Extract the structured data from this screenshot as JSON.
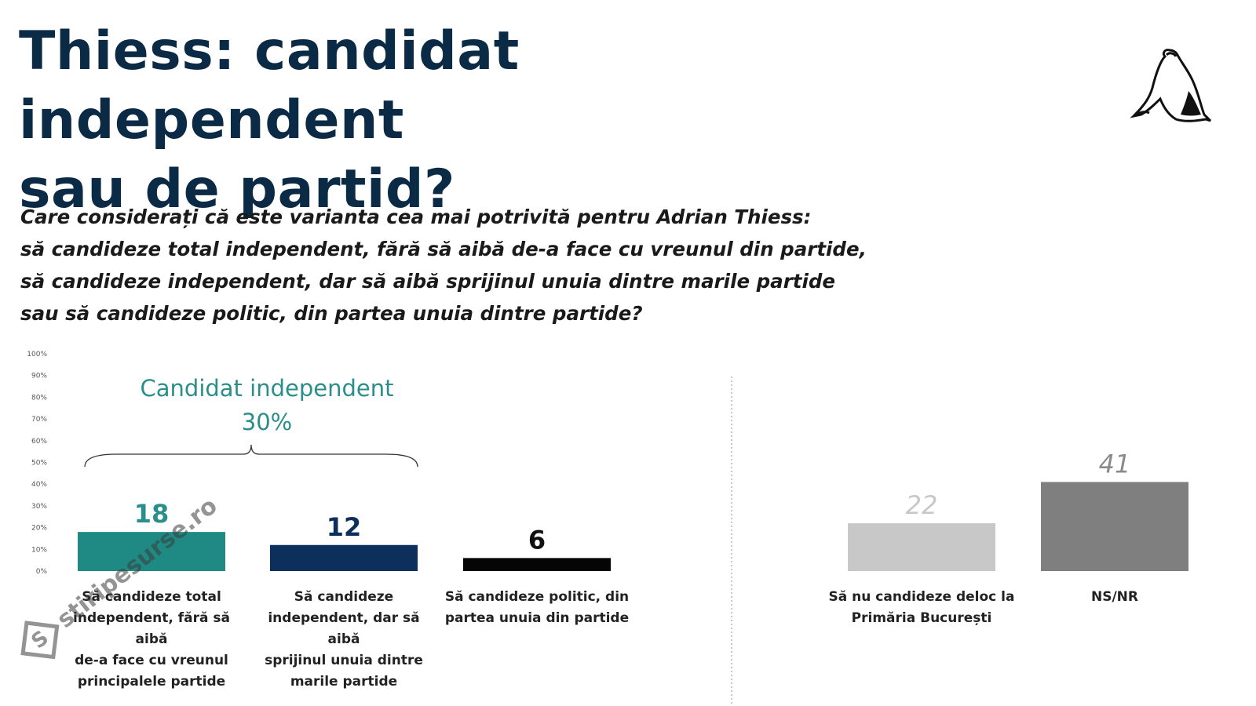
{
  "title": {
    "line1": "Thiess: candidat independent",
    "line2": "sau de partid?"
  },
  "question": {
    "lines": [
      "Care considerați că este varianta cea mai potrivită pentru Adrian Thiess:",
      "să candideze total independent, fără să aibă de-a face cu vreunul din partide,",
      "să candideze independent, dar să aibă sprijinul unuia dintre marile partide",
      "sau să candideze politic, din partea unuia dintre partide?"
    ]
  },
  "watermark": {
    "text": "stiripesurse.ro",
    "badge": "S"
  },
  "chart_data": {
    "type": "bar",
    "title": "Thiess: candidat independent sau de partid?",
    "ylabel": "",
    "xlabel": "",
    "ylim": [
      0,
      100
    ],
    "yticks": [
      "100%",
      "90%",
      "80%",
      "70%",
      "60%",
      "50%",
      "40%",
      "30%",
      "20%",
      "10%",
      "0%"
    ],
    "grid": false,
    "bracket": {
      "label_line1": "Candidat independent",
      "label_line2": "30%",
      "color": "#2a8f8a"
    },
    "groups": [
      {
        "bars": [
          {
            "value": 18,
            "color": "#1f8a84",
            "label_color": "#2a8f8a",
            "category_lines": [
              "Să candideze total",
              "independent, fără să aibă",
              "de-a face cu vreunul",
              "principalele partide"
            ]
          },
          {
            "value": 12,
            "color": "#0d2f5c",
            "label_color": "#0d2f5c",
            "category_lines": [
              "Să candideze",
              "independent, dar să aibă",
              "sprijinul unuia dintre",
              "marile partide"
            ]
          },
          {
            "value": 6,
            "color": "#050505",
            "label_color": "#111111",
            "category_lines": [
              "Să candideze politic, din",
              "partea unuia din partide"
            ]
          }
        ]
      },
      {
        "bars": [
          {
            "value": 22,
            "color": "#c8c8c8",
            "label_color": "#c8c8c8",
            "category_lines": [
              "Să nu candideze deloc la",
              "Primăria București"
            ]
          },
          {
            "value": 41,
            "color": "#7f7f7f",
            "label_color": "#8a8a8a",
            "category_lines": [
              "NS/NR"
            ]
          }
        ]
      }
    ]
  }
}
